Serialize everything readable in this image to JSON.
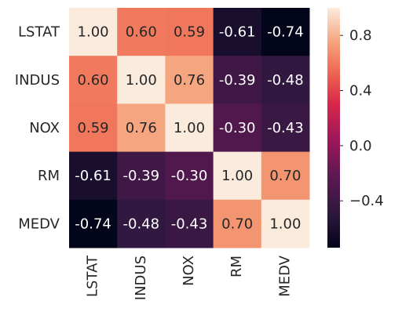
{
  "chart_data": {
    "type": "heatmap",
    "title": "",
    "xlabel": "",
    "ylabel": "",
    "rows": [
      "LSTAT",
      "INDUS",
      "NOX",
      "RM",
      "MEDV"
    ],
    "columns": [
      "LSTAT",
      "INDUS",
      "NOX",
      "RM",
      "MEDV"
    ],
    "values": [
      [
        1.0,
        0.6,
        0.59,
        -0.61,
        -0.74
      ],
      [
        0.6,
        1.0,
        0.76,
        -0.39,
        -0.48
      ],
      [
        0.59,
        0.76,
        1.0,
        -0.3,
        -0.43
      ],
      [
        -0.61,
        -0.39,
        -0.3,
        1.0,
        0.7
      ],
      [
        -0.74,
        -0.48,
        -0.43,
        0.7,
        1.0
      ]
    ],
    "cell_labels": [
      [
        "1.00",
        "0.60",
        "0.59",
        "-0.61",
        "-0.74"
      ],
      [
        "0.60",
        "1.00",
        "0.76",
        "-0.39",
        "-0.48"
      ],
      [
        "0.59",
        "0.76",
        "1.00",
        "-0.30",
        "-0.43"
      ],
      [
        "-0.61",
        "-0.39",
        "-0.30",
        "1.00",
        "0.70"
      ],
      [
        "-0.74",
        "-0.48",
        "-0.43",
        "0.70",
        "1.00"
      ]
    ],
    "colormap": "rocket",
    "colorbar": {
      "range": [
        -0.74,
        1.0
      ],
      "ticks": [
        0.8,
        0.4,
        0.0,
        -0.4
      ],
      "tick_labels": [
        "0.8",
        "0.4",
        "0.0",
        "−0.4"
      ],
      "placement": "right"
    }
  }
}
